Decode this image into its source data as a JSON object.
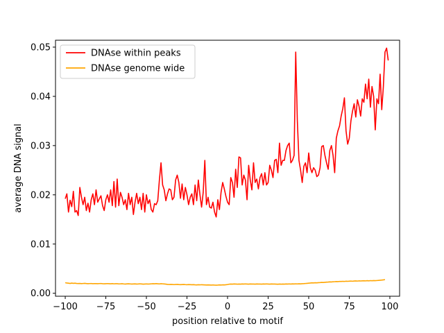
{
  "chart_data": {
    "type": "line",
    "title": "",
    "xlabel": "position relative to motif",
    "ylabel": "average DNA signal",
    "xlim": [
      -106,
      106
    ],
    "ylim": [
      -0.0006,
      0.0514
    ],
    "xticks": [
      -100,
      -75,
      -50,
      -25,
      0,
      25,
      50,
      75,
      100
    ],
    "yticks": [
      0.0,
      0.01,
      0.02,
      0.03,
      0.04,
      0.05
    ],
    "ytick_labels": [
      "0.00",
      "0.01",
      "0.02",
      "0.03",
      "0.04",
      "0.05"
    ],
    "grid": false,
    "legend": "upper-left",
    "x_step": 1,
    "x_start": -100,
    "series": [
      {
        "name": "DNAse within peaks",
        "color": "#ff0000",
        "values": [
          0.0192,
          0.0202,
          0.0165,
          0.0189,
          0.0176,
          0.0207,
          0.0165,
          0.0168,
          0.0158,
          0.0215,
          0.0195,
          0.018,
          0.0195,
          0.0168,
          0.0183,
          0.0165,
          0.019,
          0.0202,
          0.018,
          0.021,
          0.0185,
          0.0192,
          0.0198,
          0.0178,
          0.0168,
          0.019,
          0.02,
          0.0185,
          0.021,
          0.0178,
          0.0227,
          0.0175,
          0.0232,
          0.0178,
          0.0205,
          0.0195,
          0.018,
          0.019,
          0.017,
          0.0203,
          0.018,
          0.0195,
          0.016,
          0.0185,
          0.0203,
          0.0182,
          0.0195,
          0.017,
          0.0203,
          0.0165,
          0.02,
          0.0182,
          0.019,
          0.017,
          0.0165,
          0.0182,
          0.018,
          0.0188,
          0.023,
          0.0265,
          0.022,
          0.021,
          0.0188,
          0.0202,
          0.0212,
          0.021,
          0.019,
          0.0195,
          0.023,
          0.024,
          0.0225,
          0.0193,
          0.0222,
          0.019,
          0.0215,
          0.02,
          0.018,
          0.0195,
          0.0202,
          0.018,
          0.022,
          0.0188,
          0.023,
          0.02,
          0.0175,
          0.0205,
          0.027,
          0.018,
          0.0195,
          0.0175,
          0.0173,
          0.0185,
          0.0165,
          0.0155,
          0.019,
          0.017,
          0.0205,
          0.0225,
          0.0212,
          0.0197,
          0.0185,
          0.018,
          0.0235,
          0.0225,
          0.0195,
          0.0252,
          0.0215,
          0.0277,
          0.0275,
          0.022,
          0.024,
          0.023,
          0.019,
          0.026,
          0.023,
          0.021,
          0.0265,
          0.0225,
          0.0232,
          0.0212,
          0.0235,
          0.0243,
          0.022,
          0.0245,
          0.022,
          0.0225,
          0.026,
          0.025,
          0.0235,
          0.027,
          0.0272,
          0.0245,
          0.0305,
          0.026,
          0.027,
          0.027,
          0.029,
          0.03,
          0.0305,
          0.0265,
          0.027,
          0.028,
          0.049,
          0.035,
          0.027,
          0.025,
          0.0225,
          0.0258,
          0.0265,
          0.0245,
          0.0285,
          0.0255,
          0.0245,
          0.0255,
          0.025,
          0.0237,
          0.024,
          0.0255,
          0.0298,
          0.03,
          0.028,
          0.0265,
          0.0252,
          0.029,
          0.03,
          0.028,
          0.0245,
          0.0315,
          0.033,
          0.034,
          0.036,
          0.0375,
          0.0397,
          0.033,
          0.0303,
          0.0315,
          0.035,
          0.037,
          0.0385,
          0.0358,
          0.0393,
          0.038,
          0.036,
          0.0395,
          0.0388,
          0.0425,
          0.0395,
          0.0435,
          0.0378,
          0.042,
          0.04,
          0.0332,
          0.0395,
          0.0385,
          0.0445,
          0.0373,
          0.042,
          0.049,
          0.0498,
          0.0473
        ]
      },
      {
        "name": "DNAse genome wide",
        "color": "#ffa500",
        "values": [
          0.00215,
          0.00208,
          0.00205,
          0.002,
          0.00207,
          0.00202,
          0.00205,
          0.002,
          0.00198,
          0.002,
          0.00196,
          0.00199,
          0.00202,
          0.00198,
          0.00195,
          0.00197,
          0.00199,
          0.00195,
          0.00197,
          0.00196,
          0.00195,
          0.00197,
          0.00199,
          0.00195,
          0.00193,
          0.00195,
          0.00197,
          0.00195,
          0.00193,
          0.00196,
          0.00192,
          0.00194,
          0.00195,
          0.0019,
          0.00192,
          0.00194,
          0.0019,
          0.00188,
          0.00191,
          0.00193,
          0.0019,
          0.00187,
          0.00189,
          0.00191,
          0.00187,
          0.00189,
          0.00192,
          0.00189,
          0.00186,
          0.00188,
          0.0019,
          0.00187,
          0.00189,
          0.00192,
          0.00195,
          0.00193,
          0.00196,
          0.00193,
          0.0019,
          0.00195,
          0.00192,
          0.00189,
          0.00186,
          0.0018,
          0.00178,
          0.00181,
          0.00179,
          0.00176,
          0.00178,
          0.0018,
          0.00177,
          0.00175,
          0.00177,
          0.00179,
          0.00176,
          0.00174,
          0.00177,
          0.00175,
          0.00173,
          0.00175,
          0.00172,
          0.0017,
          0.00173,
          0.00171,
          0.00174,
          0.00172,
          0.0017,
          0.00168,
          0.0017,
          0.00168,
          0.00166,
          0.00169,
          0.00166,
          0.00165,
          0.00167,
          0.0017,
          0.00168,
          0.00171,
          0.0017,
          0.00173,
          0.00178,
          0.00185,
          0.00188,
          0.00186,
          0.00189,
          0.00187,
          0.00185,
          0.00188,
          0.00186,
          0.00189,
          0.00187,
          0.0019,
          0.00188,
          0.00186,
          0.00189,
          0.00187,
          0.00188,
          0.00186,
          0.00189,
          0.00187,
          0.00188,
          0.00186,
          0.00189,
          0.00187,
          0.0019,
          0.00188,
          0.00186,
          0.00189,
          0.00187,
          0.00188,
          0.00186,
          0.00184,
          0.00187,
          0.00185,
          0.00188,
          0.00186,
          0.00189,
          0.00187,
          0.0019,
          0.00188,
          0.00191,
          0.00189,
          0.00192,
          0.0019,
          0.00193,
          0.00191,
          0.00194,
          0.00196,
          0.00199,
          0.00202,
          0.00205,
          0.00208,
          0.00212,
          0.0021,
          0.00214,
          0.00212,
          0.00216,
          0.00218,
          0.00221,
          0.00219,
          0.00223,
          0.00226,
          0.00228,
          0.00232,
          0.0023,
          0.00234,
          0.00236,
          0.00239,
          0.00237,
          0.00241,
          0.0024,
          0.00243,
          0.00241,
          0.00245,
          0.00243,
          0.00246,
          0.00248,
          0.00245,
          0.00249,
          0.00251,
          0.00248,
          0.00252,
          0.0025,
          0.00253,
          0.00255,
          0.00252,
          0.00256,
          0.00253,
          0.00257,
          0.00255,
          0.00258,
          0.00256,
          0.00259,
          0.00262,
          0.00265,
          0.00268,
          0.00272,
          0.00278
        ]
      }
    ]
  }
}
